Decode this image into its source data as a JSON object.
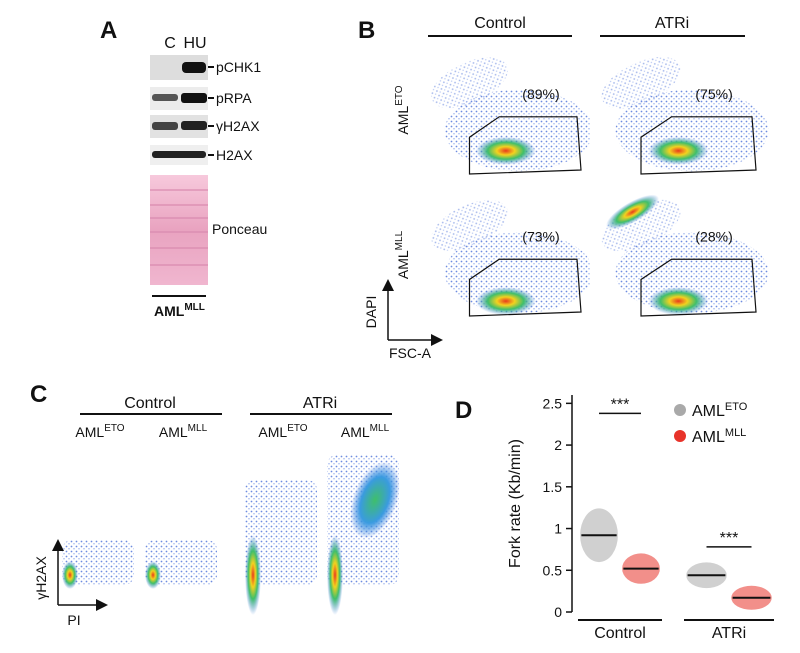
{
  "panel_a": {
    "label": "A",
    "lanes": [
      "C",
      "HU"
    ],
    "bands": [
      "pCHK1",
      "pRPA",
      "γH2AX",
      "H2AX",
      "Ponceau"
    ],
    "sample": {
      "text": "AML",
      "sup": "MLL"
    }
  },
  "panel_b": {
    "label": "B",
    "conditions": [
      "Control",
      "ATRi"
    ],
    "rows": [
      {
        "text": "AML",
        "sup": "ETO",
        "gates": [
          "(89%)",
          "(75%)"
        ]
      },
      {
        "text": "AML",
        "sup": "MLL",
        "gates": [
          "(73%)",
          "(28%)"
        ]
      }
    ],
    "y_axis": "DAPI",
    "x_axis": "FSC-A"
  },
  "panel_c": {
    "label": "C",
    "conditions": [
      "Control",
      "ATRi"
    ],
    "samples": [
      {
        "text": "AML",
        "sup": "ETO"
      },
      {
        "text": "AML",
        "sup": "MLL"
      },
      {
        "text": "AML",
        "sup": "ETO"
      },
      {
        "text": "AML",
        "sup": "MLL"
      }
    ],
    "y_axis": "γH2AX",
    "x_axis": "PI"
  },
  "panel_d": {
    "label": "D"
  },
  "chart_data": {
    "type": "dot-plot",
    "ylabel": "Fork rate (Kb/min)",
    "categories": [
      "Control",
      "ATRi"
    ],
    "series": [
      {
        "name": "AML",
        "sup": "ETO",
        "color": "#a9a9a9",
        "values": [
          0.92,
          0.44
        ]
      },
      {
        "name": "AML",
        "sup": "MLL",
        "color": "#e8332a",
        "values": [
          0.52,
          0.17
        ]
      }
    ],
    "ylim": [
      0,
      2.6
    ],
    "yticks": [
      0,
      0.5,
      1,
      1.5,
      2,
      2.5
    ],
    "significance": [
      "***",
      "***"
    ]
  }
}
